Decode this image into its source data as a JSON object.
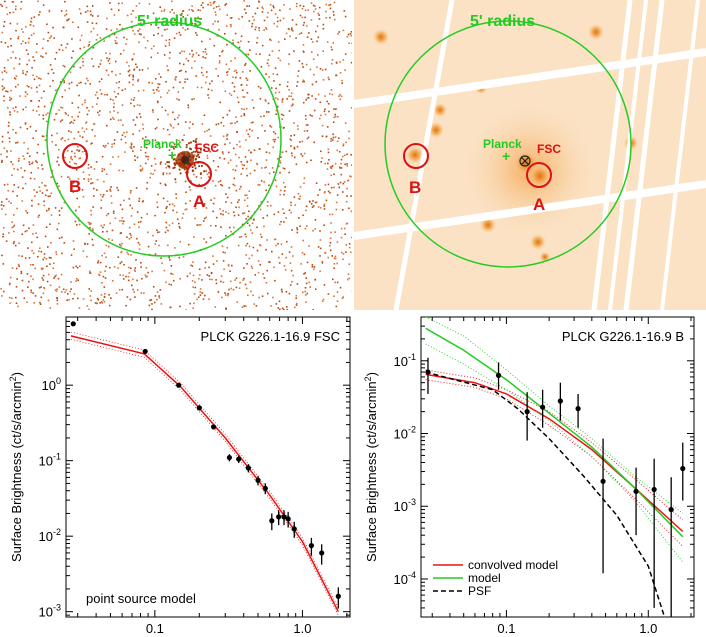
{
  "images": [
    {
      "radius_label": "5' radius",
      "marker_planck": "Planck",
      "marker_fsc": "FSC",
      "source_a": "A",
      "source_b": "B",
      "style": "raw counts"
    },
    {
      "radius_label": "5' radius",
      "marker_planck": "Planck",
      "marker_fsc": "FSC",
      "source_a": "A",
      "source_b": "B",
      "style": "smoothed"
    }
  ],
  "colors": {
    "circle_green": "#22cc22",
    "source_red": "#dd1111",
    "model_red": "#ee1111",
    "model_green": "#22cc22",
    "psf_black": "#000000"
  },
  "chart_data": [
    {
      "type": "scatter",
      "title": "PLCK G226.1-16.9 FSC",
      "xlabel": "Radius (arcmin)",
      "ylabel": "Surface Brightness (ct/s/arcmin",
      "ylabel_sup": "2",
      "ylabel_end": ")",
      "xscale": "log",
      "yscale": "log",
      "xlim": [
        0.025,
        2.1
      ],
      "ylim": [
        0.00085,
        8
      ],
      "x_tick_labels": [
        {
          "value": 0.1,
          "label": "0.1"
        },
        {
          "value": 1.0,
          "label": "1.0"
        }
      ],
      "y_tick_labels": [
        {
          "value": 0.001,
          "label": "10",
          "exp": "-3"
        },
        {
          "value": 0.01,
          "label": "10",
          "exp": "-2"
        },
        {
          "value": 0.1,
          "label": "10",
          "exp": "-1"
        },
        {
          "value": 1,
          "label": "10",
          "exp": "0"
        }
      ],
      "annotation": "point source model",
      "points": [
        {
          "x": 0.028,
          "y": 6.5,
          "err": 0.4
        },
        {
          "x": 0.086,
          "y": 2.8,
          "err": 0.15
        },
        {
          "x": 0.145,
          "y": 1.0,
          "err": 0.06
        },
        {
          "x": 0.2,
          "y": 0.5,
          "err": 0.03
        },
        {
          "x": 0.25,
          "y": 0.28,
          "err": 0.02
        },
        {
          "x": 0.32,
          "y": 0.11,
          "err": 0.012
        },
        {
          "x": 0.37,
          "y": 0.105,
          "err": 0.012
        },
        {
          "x": 0.43,
          "y": 0.08,
          "err": 0.01
        },
        {
          "x": 0.5,
          "y": 0.055,
          "err": 0.008
        },
        {
          "x": 0.56,
          "y": 0.043,
          "err": 0.007
        },
        {
          "x": 0.62,
          "y": 0.016,
          "err": 0.004
        },
        {
          "x": 0.69,
          "y": 0.018,
          "err": 0.004
        },
        {
          "x": 0.75,
          "y": 0.018,
          "err": 0.004
        },
        {
          "x": 0.8,
          "y": 0.017,
          "err": 0.004
        },
        {
          "x": 0.88,
          "y": 0.0125,
          "err": 0.003
        },
        {
          "x": 1.15,
          "y": 0.0075,
          "err": 0.002
        },
        {
          "x": 1.35,
          "y": 0.006,
          "err": 0.0018
        },
        {
          "x": 1.75,
          "y": 0.0016,
          "err": 0.0005
        }
      ],
      "model": {
        "x": [
          0.027,
          0.085,
          0.15,
          0.3,
          0.6,
          1.0,
          1.75
        ],
        "y": [
          4.5,
          2.6,
          0.95,
          0.2,
          0.035,
          0.0085,
          0.001
        ]
      }
    },
    {
      "type": "scatter",
      "title": "PLCK G226.1-16.9 B",
      "xlabel": "Radius (arcmin)",
      "ylabel": "Surface Brightness (ct/s/arcmin",
      "ylabel_sup": "2",
      "ylabel_end": ")",
      "xscale": "log",
      "yscale": "log",
      "xlim": [
        0.025,
        2.1
      ],
      "ylim": [
        3e-05,
        0.4
      ],
      "x_tick_labels": [
        {
          "value": 0.1,
          "label": "0.1"
        },
        {
          "value": 1.0,
          "label": "1.0"
        }
      ],
      "y_tick_labels": [
        {
          "value": 0.0001,
          "label": "10",
          "exp": "-4"
        },
        {
          "value": 0.001,
          "label": "10",
          "exp": "-3"
        },
        {
          "value": 0.01,
          "label": "10",
          "exp": "-2"
        },
        {
          "value": 0.1,
          "label": "10",
          "exp": "-1"
        }
      ],
      "legend_placement": "bottom-left",
      "points": [
        {
          "x": 0.028,
          "y": 0.07,
          "lo": 0.035,
          "hi": 0.11
        },
        {
          "x": 0.088,
          "y": 0.063,
          "lo": 0.04,
          "hi": 0.095
        },
        {
          "x": 0.14,
          "y": 0.02,
          "lo": 0.008,
          "hi": 0.037
        },
        {
          "x": 0.18,
          "y": 0.023,
          "lo": 0.012,
          "hi": 0.04
        },
        {
          "x": 0.24,
          "y": 0.028,
          "lo": 0.015,
          "hi": 0.05
        },
        {
          "x": 0.32,
          "y": 0.022,
          "lo": 0.012,
          "hi": 0.035
        },
        {
          "x": 0.48,
          "y": 0.0022,
          "lo": 0.00012,
          "hi": 0.0085
        },
        {
          "x": 0.82,
          "y": 0.0016,
          "lo": 0.0004,
          "hi": 0.0034
        },
        {
          "x": 1.1,
          "y": 0.0017,
          "lo": 4e-05,
          "hi": 0.0045
        },
        {
          "x": 1.45,
          "y": 0.0009,
          "lo": 3e-05,
          "hi": 0.0025
        },
        {
          "x": 1.75,
          "y": 0.0033,
          "lo": 0.0012,
          "hi": 0.0075
        }
      ],
      "series": [
        {
          "name": "convolved model",
          "color": "#ee1111",
          "x": [
            0.027,
            0.06,
            0.1,
            0.2,
            0.4,
            0.8,
            1.75
          ],
          "y": [
            0.065,
            0.05,
            0.035,
            0.016,
            0.006,
            0.0018,
            0.00045
          ],
          "band_lo": [
            0.055,
            0.043,
            0.03,
            0.013,
            0.0048,
            0.0013,
            0.00028
          ],
          "band_hi": [
            0.075,
            0.058,
            0.04,
            0.02,
            0.0075,
            0.0024,
            0.00065
          ]
        },
        {
          "name": "model",
          "color": "#22cc22",
          "x": [
            0.027,
            0.05,
            0.1,
            0.2,
            0.4,
            0.8,
            1.75
          ],
          "y": [
            0.28,
            0.14,
            0.055,
            0.019,
            0.0065,
            0.0018,
            0.00038
          ],
          "band_lo": [
            0.17,
            0.09,
            0.04,
            0.015,
            0.0048,
            0.0012,
            0.00017
          ],
          "band_hi": [
            0.45,
            0.22,
            0.075,
            0.024,
            0.0085,
            0.0026,
            0.0008
          ]
        },
        {
          "name": "PSF",
          "color": "#000000",
          "dashed": true,
          "x": [
            0.027,
            0.08,
            0.12,
            0.2,
            0.35,
            0.6,
            1.0,
            1.3
          ],
          "y": [
            0.07,
            0.04,
            0.022,
            0.0085,
            0.0026,
            0.00075,
            0.00015,
            3e-05
          ]
        }
      ]
    }
  ]
}
